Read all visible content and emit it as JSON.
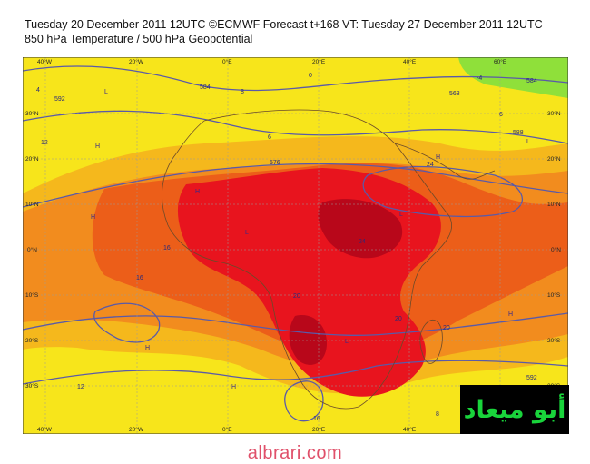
{
  "header": {
    "line1": "Tuesday 20 December 2011 12UTC ©ECMWF Forecast t+168 VT: Tuesday 27 December 2011 12UTC",
    "line2": "850 hPa Temperature / 500 hPa Geopotential"
  },
  "axes": {
    "lon_top": [
      "40°W",
      "20°W",
      "0°E",
      "20°E",
      "40°E",
      "60°E"
    ],
    "lon_bottom": [
      "40°W",
      "20°W",
      "0°E",
      "20°E",
      "40°E",
      "60°E"
    ],
    "lat_left": [
      "30°N",
      "20°N",
      "10°N",
      "0°N",
      "10°S",
      "20°S",
      "30°S"
    ],
    "lat_right": [
      "30°N",
      "20°N",
      "10°N",
      "0°N",
      "10°S",
      "20°S",
      "30°S"
    ]
  },
  "contour_labels": [
    "4",
    "8",
    "12",
    "16",
    "20",
    "24",
    "568",
    "576",
    "584",
    "588",
    "592",
    "-4",
    "0",
    "6"
  ],
  "pressure_marks": [
    "H",
    "L"
  ],
  "colors": {
    "cold_green": "#8fe03a",
    "yellow": "#f7e51b",
    "light_orange": "#f5b81c",
    "orange": "#f28c1e",
    "dark_orange": "#ec5e19",
    "red": "#e8141e",
    "deep_red": "#b8071a",
    "geopotential_line": "#5a5aa8",
    "footer_text": "#e0506a",
    "logo_text": "#19d43b"
  },
  "logo_text": "أبو ميعاد",
  "footer": "albrari.com"
}
